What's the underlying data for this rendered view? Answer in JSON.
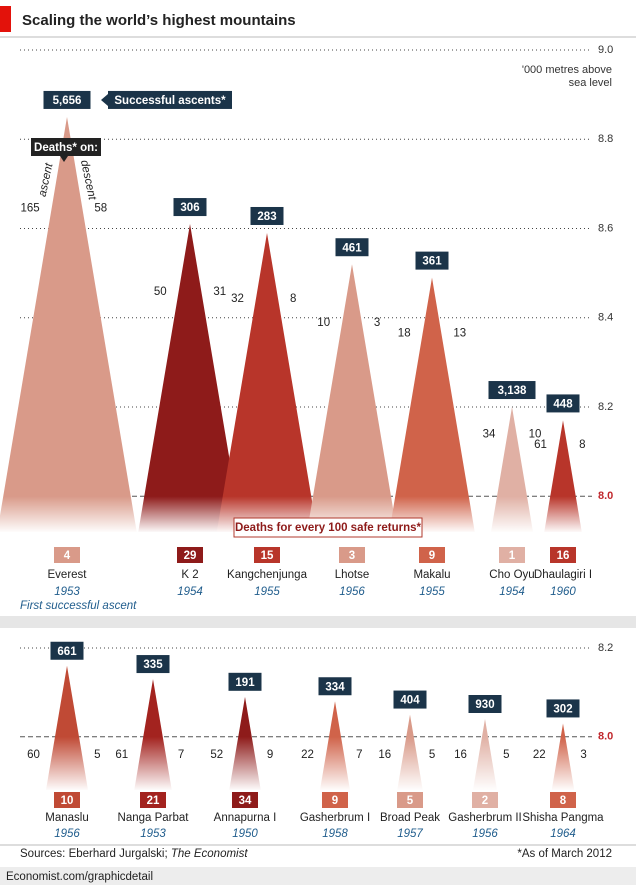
{
  "title": "Scaling the world’s highest mountains",
  "sources": [
    "Sources: Eberhard Jurgalski;",
    "The Economist"
  ],
  "note": "*As of March 2012",
  "url": "Economist.com/graphicdetail",
  "chart_data": [
    {
      "type": "mountain",
      "y_label": [
        "'000 metres above",
        "sea level"
      ],
      "ylim": [
        7.92,
        9.0
      ],
      "yticks": [
        {
          "value": 8,
          "label": "8.0"
        },
        8.2,
        8.4,
        8.6,
        8.8,
        {
          "value": 9,
          "label": "9.0"
        }
      ],
      "grid": true,
      "ref_color": "#c0282d",
      "categories": [
        "Everest",
        "K 2",
        "Kangchenjunga",
        "Lhotse",
        "Makalu",
        "Cho Oyu",
        "Dhaulagiri I"
      ],
      "years": [
        1953,
        1954,
        1955,
        1956,
        1955,
        1954,
        1960
      ],
      "year_label": "First successful ascent",
      "heights": {
        "values": [
          8.85,
          8.61,
          8.59,
          8.52,
          8.49,
          8.2,
          8.17
        ]
      },
      "ascents": {
        "name": "Successful ascents*",
        "values": [
          5656,
          306,
          283,
          461,
          361,
          3138,
          448
        ],
        "value_labels": [
          "5,656",
          "306",
          "283",
          "461",
          "361",
          "3,138",
          "448"
        ]
      },
      "deaths": {
        "name": "Deaths* on:",
        "ascent_name": "ascent",
        "descent_name": "descent",
        "ascent": [
          165,
          50,
          32,
          10,
          18,
          34,
          61
        ],
        "descent": [
          58,
          31,
          8,
          3,
          13,
          10,
          8
        ]
      },
      "rate": {
        "name": "Deaths for every 100 safe returns*",
        "values": [
          4,
          29,
          15,
          3,
          9,
          1,
          16
        ]
      },
      "colors": [
        "#d99a89",
        "#8e1b1a",
        "#b8352a",
        "#d99a89",
        "#d0634a",
        "#e0b0a4",
        "#b8352a"
      ]
    },
    {
      "type": "mountain",
      "ylim": [
        7.88,
        8.2
      ],
      "yticks": [
        {
          "value": 8,
          "label": "8.0"
        },
        8.2
      ],
      "grid": true,
      "ref_color": "#c0282d",
      "categories": [
        "Manaslu",
        "Nanga Parbat",
        "Annapurna I",
        "Gasherbrum I",
        "Broad Peak",
        "Gasherbrum II",
        "Shisha Pangma"
      ],
      "years": [
        1956,
        1953,
        1950,
        1958,
        1957,
        1956,
        1964
      ],
      "heights": {
        "values": [
          8.16,
          8.13,
          8.09,
          8.08,
          8.05,
          8.04,
          8.03
        ]
      },
      "ascents": {
        "values": [
          661,
          335,
          191,
          334,
          404,
          930,
          302
        ]
      },
      "deaths": {
        "ascent": [
          60,
          61,
          52,
          22,
          16,
          16,
          22
        ],
        "descent": [
          5,
          7,
          9,
          7,
          5,
          5,
          3
        ]
      },
      "rate": {
        "values": [
          10,
          21,
          34,
          9,
          5,
          2,
          8
        ]
      },
      "colors": [
        "#c04a35",
        "#a3231f",
        "#8e1b1a",
        "#d0634a",
        "#d99a89",
        "#e0b0a4",
        "#d0634a"
      ]
    }
  ]
}
